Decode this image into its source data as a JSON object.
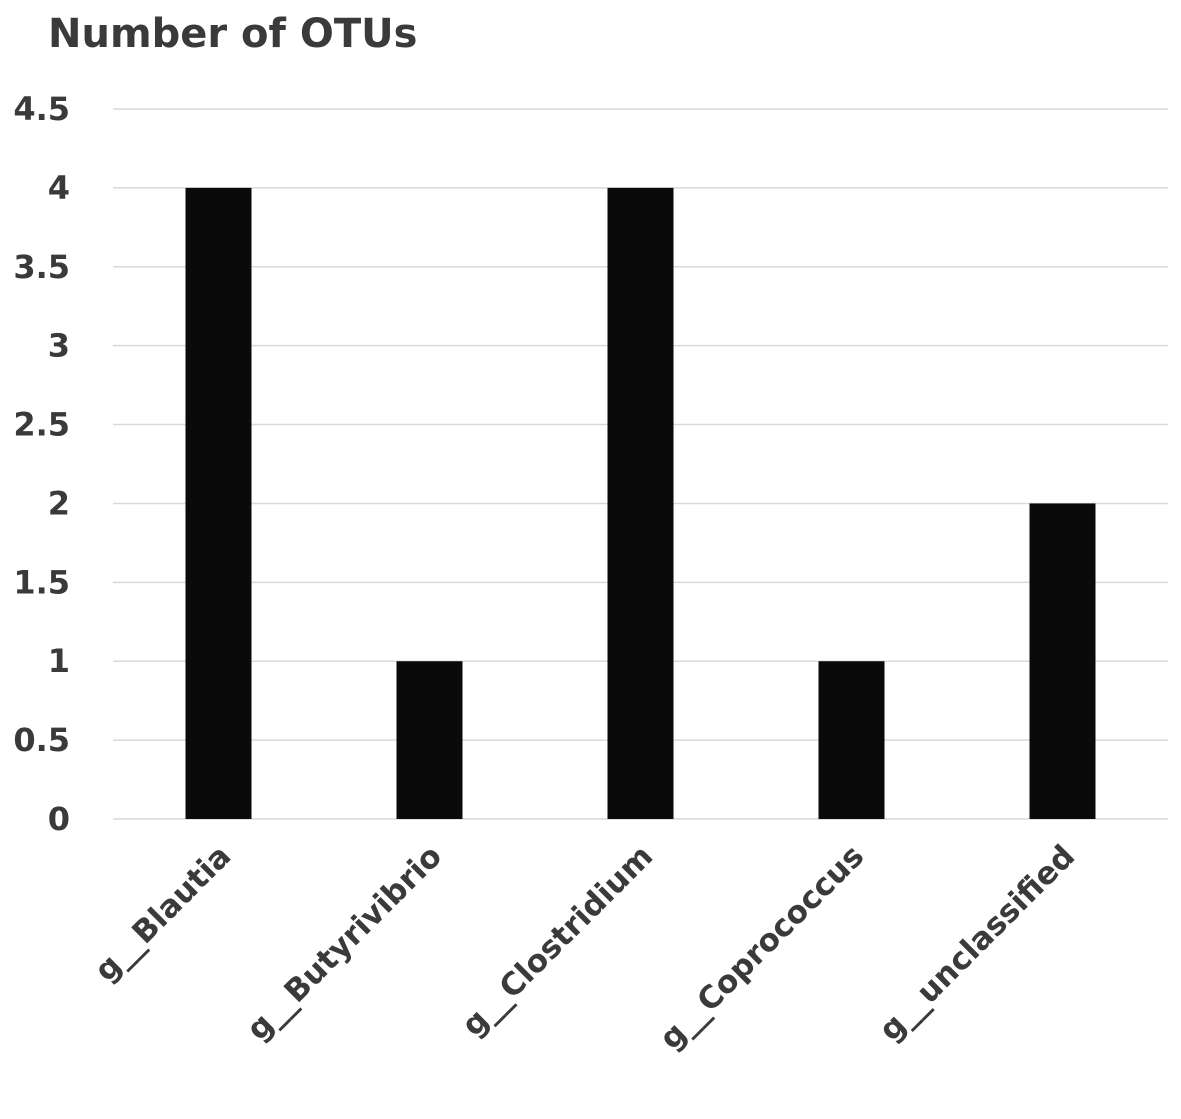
{
  "chart_data": {
    "type": "bar",
    "title": "Number of OTUs",
    "xlabel": "",
    "ylabel": "",
    "categories": [
      "g__Blautia",
      "g__Butyrivibrio",
      "g__Clostridium",
      "g__Coprococcus",
      "g__unclassified"
    ],
    "values": [
      4,
      1,
      4,
      1,
      2
    ],
    "ylim": [
      0,
      4.5
    ],
    "yticks": [
      "0",
      "0.5",
      "1",
      "1.5",
      "2",
      "2.5",
      "3",
      "3.5",
      "4",
      "4.5"
    ],
    "grid": true,
    "legend": "none",
    "bar_color": "#0a0a0a",
    "grid_color": "#d9d9d9",
    "text_color": "#3a3a3a"
  }
}
